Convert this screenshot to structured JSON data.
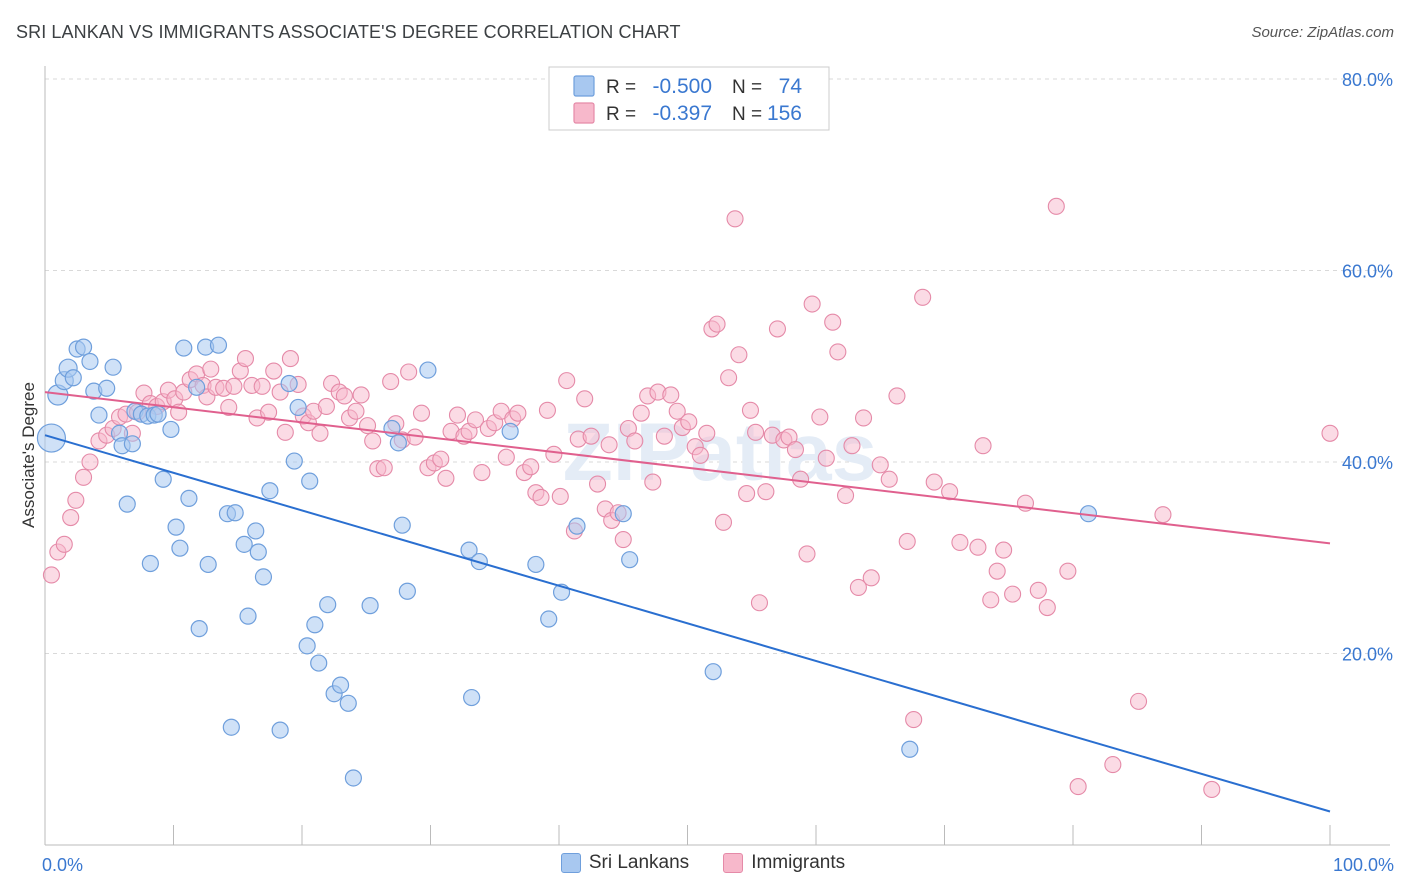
{
  "title": "SRI LANKAN VS IMMIGRANTS ASSOCIATE'S DEGREE CORRELATION CHART",
  "source": "Source: ZipAtlas.com",
  "watermark": "ZIPatlas",
  "colors": {
    "blue_fill": "#a8c8f0",
    "blue_stroke": "#6f9fdc",
    "blue_line": "#2a6fd0",
    "pink_fill": "#f7b8cb",
    "pink_stroke": "#e58aa8",
    "pink_line": "#e0608e",
    "tick_text": "#3a78d0",
    "grid": "#d9d9d9"
  },
  "stats_legend": {
    "rows": [
      {
        "r_label": "R =",
        "r_value": "-0.500",
        "n_label": "N =",
        "n_value": "74"
      },
      {
        "r_label": "R =",
        "r_value": "-0.397",
        "n_label": "N =",
        "n_value": "156"
      }
    ]
  },
  "chart_data": {
    "type": "scatter",
    "title": "SRI LANKAN VS IMMIGRANTS ASSOCIATE'S DEGREE CORRELATION CHART",
    "xlabel": "",
    "ylabel": "Associate's Degree",
    "xlim": [
      0,
      100
    ],
    "ylim": [
      0,
      80
    ],
    "x_tick_labels": [
      "0.0%",
      "100.0%"
    ],
    "y_ticks": [
      20,
      40,
      60,
      80
    ],
    "y_tick_labels": [
      "20.0%",
      "40.0%",
      "60.0%",
      "80.0%"
    ],
    "grid": true,
    "legend_position": "bottom-center",
    "series": [
      {
        "name": "Sri Lankans",
        "trend": {
          "x": [
            0,
            100
          ],
          "y": [
            42.8,
            3.5
          ]
        },
        "points": [
          [
            0.5,
            42.5,
            14
          ],
          [
            1.0,
            47.0,
            10
          ],
          [
            1.5,
            48.5,
            9
          ],
          [
            1.8,
            49.8,
            9
          ],
          [
            2.2,
            48.8,
            8
          ],
          [
            2.5,
            51.8,
            8
          ],
          [
            3.0,
            52.0,
            8
          ],
          [
            3.5,
            50.5,
            8
          ],
          [
            3.8,
            47.4,
            8
          ],
          [
            4.2,
            44.9,
            8
          ],
          [
            4.8,
            47.7,
            8
          ],
          [
            5.3,
            49.9,
            8
          ],
          [
            5.8,
            43.0,
            8
          ],
          [
            6.0,
            41.7,
            8
          ],
          [
            6.4,
            35.6,
            8
          ],
          [
            6.8,
            41.9,
            8
          ],
          [
            7.0,
            45.3,
            8
          ],
          [
            7.5,
            45.0,
            8
          ],
          [
            8.0,
            44.8,
            8
          ],
          [
            8.2,
            29.4,
            8
          ],
          [
            8.5,
            44.9,
            8
          ],
          [
            8.8,
            45.0,
            8
          ],
          [
            9.2,
            38.2,
            8
          ],
          [
            9.8,
            43.4,
            8
          ],
          [
            10.2,
            33.2,
            8
          ],
          [
            10.5,
            31.0,
            8
          ],
          [
            10.8,
            51.9,
            8
          ],
          [
            11.2,
            36.2,
            8
          ],
          [
            11.8,
            47.8,
            8
          ],
          [
            12.0,
            22.6,
            8
          ],
          [
            12.5,
            52.0,
            8
          ],
          [
            12.7,
            29.3,
            8
          ],
          [
            13.5,
            52.2,
            8
          ],
          [
            14.2,
            34.6,
            8
          ],
          [
            14.5,
            12.3,
            8
          ],
          [
            14.8,
            34.7,
            8
          ],
          [
            15.5,
            31.4,
            8
          ],
          [
            15.8,
            23.9,
            8
          ],
          [
            16.4,
            32.8,
            8
          ],
          [
            16.6,
            30.6,
            8
          ],
          [
            17.0,
            28.0,
            8
          ],
          [
            17.5,
            37.0,
            8
          ],
          [
            18.3,
            12.0,
            8
          ],
          [
            19.0,
            48.2,
            8
          ],
          [
            19.4,
            40.1,
            8
          ],
          [
            19.7,
            45.7,
            8
          ],
          [
            20.4,
            20.8,
            8
          ],
          [
            20.6,
            38.0,
            8
          ],
          [
            21.0,
            23.0,
            8
          ],
          [
            21.3,
            19.0,
            8
          ],
          [
            22.0,
            25.1,
            8
          ],
          [
            22.5,
            15.8,
            8
          ],
          [
            23.0,
            16.7,
            8
          ],
          [
            23.6,
            14.8,
            8
          ],
          [
            24.0,
            7.0,
            8
          ],
          [
            25.3,
            25.0,
            8
          ],
          [
            27.0,
            43.5,
            8
          ],
          [
            27.5,
            42.0,
            8
          ],
          [
            27.8,
            33.4,
            8
          ],
          [
            28.2,
            26.5,
            8
          ],
          [
            29.8,
            49.6,
            8
          ],
          [
            33.0,
            30.8,
            8
          ],
          [
            33.2,
            15.4,
            8
          ],
          [
            33.8,
            29.6,
            8
          ],
          [
            36.2,
            43.2,
            8
          ],
          [
            38.2,
            29.3,
            8
          ],
          [
            39.2,
            23.6,
            8
          ],
          [
            40.2,
            26.4,
            8
          ],
          [
            41.4,
            33.3,
            8
          ],
          [
            45.0,
            34.6,
            8
          ],
          [
            45.5,
            29.8,
            8
          ],
          [
            52.0,
            18.1,
            8
          ],
          [
            67.3,
            10.0,
            8
          ],
          [
            81.2,
            34.6,
            8
          ]
        ]
      },
      {
        "name": "Immigrants",
        "trend": {
          "x": [
            0,
            100
          ],
          "y": [
            47.3,
            31.5
          ]
        },
        "points": [
          [
            0.5,
            28.2
          ],
          [
            1.0,
            30.6
          ],
          [
            1.5,
            31.4
          ],
          [
            2.0,
            34.2
          ],
          [
            2.4,
            36.0
          ],
          [
            3.0,
            38.4
          ],
          [
            3.5,
            40.0
          ],
          [
            4.2,
            42.2
          ],
          [
            4.8,
            42.8
          ],
          [
            5.3,
            43.5
          ],
          [
            5.8,
            44.7
          ],
          [
            6.3,
            45.0
          ],
          [
            6.8,
            43.0
          ],
          [
            7.2,
            45.2
          ],
          [
            7.7,
            47.2
          ],
          [
            8.2,
            46.1
          ],
          [
            8.7,
            45.8
          ],
          [
            9.2,
            46.3
          ],
          [
            9.6,
            47.5
          ],
          [
            10.1,
            46.6
          ],
          [
            10.4,
            45.2
          ],
          [
            10.8,
            47.3
          ],
          [
            11.3,
            48.6
          ],
          [
            11.8,
            49.2
          ],
          [
            12.3,
            48.0
          ],
          [
            12.6,
            46.8
          ],
          [
            12.9,
            49.7
          ],
          [
            13.3,
            47.8
          ],
          [
            13.9,
            47.7
          ],
          [
            14.3,
            45.7
          ],
          [
            14.7,
            47.9
          ],
          [
            15.2,
            49.5
          ],
          [
            15.6,
            50.8
          ],
          [
            16.1,
            48.0
          ],
          [
            16.5,
            44.6
          ],
          [
            16.9,
            47.9
          ],
          [
            17.4,
            45.2
          ],
          [
            17.8,
            49.5
          ],
          [
            18.3,
            47.3
          ],
          [
            18.7,
            43.1
          ],
          [
            19.1,
            50.8
          ],
          [
            19.7,
            48.1
          ],
          [
            20.1,
            44.8
          ],
          [
            20.5,
            44.1
          ],
          [
            20.9,
            45.3
          ],
          [
            21.4,
            43.0
          ],
          [
            21.9,
            45.8
          ],
          [
            22.3,
            48.2
          ],
          [
            22.9,
            47.3
          ],
          [
            23.3,
            46.9
          ],
          [
            23.7,
            44.6
          ],
          [
            24.2,
            45.3
          ],
          [
            24.6,
            47.0
          ],
          [
            25.1,
            43.8
          ],
          [
            25.5,
            42.2
          ],
          [
            25.9,
            39.3
          ],
          [
            26.4,
            39.4
          ],
          [
            26.9,
            48.4
          ],
          [
            27.3,
            44.0
          ],
          [
            27.8,
            42.3
          ],
          [
            28.3,
            49.4
          ],
          [
            28.8,
            42.6
          ],
          [
            29.3,
            45.1
          ],
          [
            29.8,
            39.4
          ],
          [
            30.3,
            39.9
          ],
          [
            30.8,
            40.3
          ],
          [
            31.2,
            38.3
          ],
          [
            31.6,
            43.2
          ],
          [
            32.1,
            44.9
          ],
          [
            32.6,
            42.7
          ],
          [
            33.0,
            43.2
          ],
          [
            33.5,
            44.4
          ],
          [
            34.0,
            38.9
          ],
          [
            34.5,
            43.5
          ],
          [
            35.0,
            44.1
          ],
          [
            35.5,
            45.3
          ],
          [
            35.9,
            40.5
          ],
          [
            36.4,
            44.5
          ],
          [
            36.8,
            45.1
          ],
          [
            37.3,
            38.9
          ],
          [
            37.8,
            39.5
          ],
          [
            38.2,
            36.8
          ],
          [
            38.6,
            36.3
          ],
          [
            39.1,
            45.4
          ],
          [
            39.6,
            40.8
          ],
          [
            40.1,
            36.4
          ],
          [
            40.6,
            48.5
          ],
          [
            41.2,
            32.8
          ],
          [
            41.5,
            42.4
          ],
          [
            42.0,
            46.6
          ],
          [
            42.5,
            42.7
          ],
          [
            43.0,
            37.7
          ],
          [
            43.6,
            35.1
          ],
          [
            43.9,
            41.8
          ],
          [
            44.1,
            33.9
          ],
          [
            44.6,
            34.7
          ],
          [
            45.0,
            31.9
          ],
          [
            45.4,
            43.5
          ],
          [
            45.9,
            42.2
          ],
          [
            46.4,
            45.1
          ],
          [
            46.9,
            46.9
          ],
          [
            47.3,
            37.9
          ],
          [
            47.7,
            47.3
          ],
          [
            48.2,
            42.7
          ],
          [
            48.7,
            47.0
          ],
          [
            49.2,
            45.3
          ],
          [
            49.6,
            43.6
          ],
          [
            50.1,
            44.2
          ],
          [
            50.6,
            41.6
          ],
          [
            51.0,
            40.7
          ],
          [
            51.5,
            43.0
          ],
          [
            51.9,
            53.9
          ],
          [
            52.3,
            54.4
          ],
          [
            52.8,
            33.7
          ],
          [
            53.2,
            48.8
          ],
          [
            53.7,
            65.4
          ],
          [
            54.0,
            51.2
          ],
          [
            54.6,
            36.7
          ],
          [
            54.9,
            45.4
          ],
          [
            55.3,
            43.1
          ],
          [
            55.6,
            25.3
          ],
          [
            56.1,
            36.9
          ],
          [
            56.6,
            42.8
          ],
          [
            57.0,
            53.9
          ],
          [
            57.5,
            42.3
          ],
          [
            57.9,
            42.6
          ],
          [
            58.4,
            41.3
          ],
          [
            58.8,
            38.2
          ],
          [
            59.3,
            30.4
          ],
          [
            59.7,
            56.5
          ],
          [
            60.3,
            44.7
          ],
          [
            60.8,
            40.4
          ],
          [
            61.3,
            54.6
          ],
          [
            61.7,
            51.5
          ],
          [
            62.3,
            36.5
          ],
          [
            62.8,
            41.7
          ],
          [
            63.3,
            26.9
          ],
          [
            63.7,
            44.6
          ],
          [
            64.3,
            27.9
          ],
          [
            65.0,
            39.7
          ],
          [
            65.7,
            38.2
          ],
          [
            66.3,
            46.9
          ],
          [
            67.1,
            31.7
          ],
          [
            67.6,
            13.1
          ],
          [
            68.3,
            57.2
          ],
          [
            69.2,
            37.9
          ],
          [
            70.4,
            36.9
          ],
          [
            71.2,
            31.6
          ],
          [
            72.6,
            31.1
          ],
          [
            73.0,
            41.7
          ],
          [
            73.6,
            25.6
          ],
          [
            74.1,
            28.6
          ],
          [
            74.6,
            30.8
          ],
          [
            75.3,
            26.2
          ],
          [
            76.3,
            35.7
          ],
          [
            77.3,
            26.6
          ],
          [
            78.0,
            24.8
          ],
          [
            78.7,
            66.7
          ],
          [
            79.6,
            28.6
          ],
          [
            80.4,
            6.1
          ],
          [
            83.1,
            8.4
          ],
          [
            85.1,
            15.0
          ],
          [
            87.0,
            34.5
          ],
          [
            90.8,
            5.8
          ],
          [
            100.0,
            43.0
          ]
        ]
      }
    ]
  }
}
